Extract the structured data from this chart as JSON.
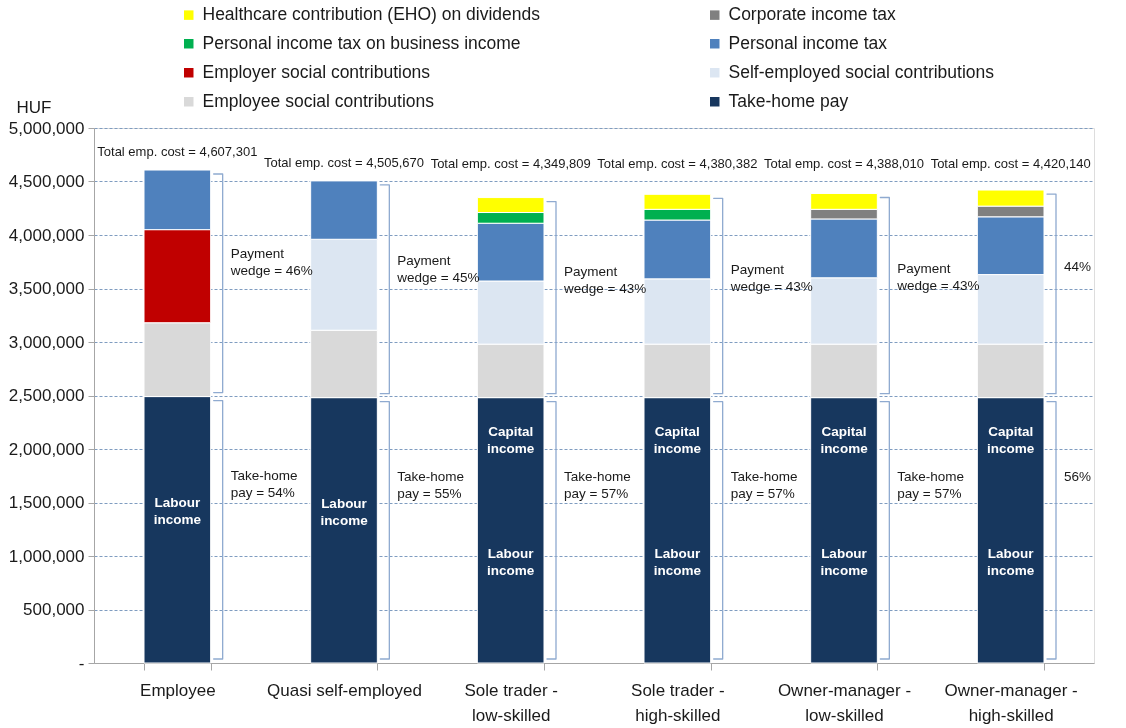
{
  "chart_data": {
    "type": "bar",
    "stacked": true,
    "ylabel": "HUF",
    "categories": [
      "Employee",
      "Quasi self-employed",
      "Sole trader -\nlow-skilled",
      "Sole trader -\nhigh-skilled",
      "Owner-manager -\nlow-skilled",
      "Owner-manager -\nhigh-skilled"
    ],
    "series": [
      {
        "name": "Take-home pay",
        "color": "#17375e",
        "values": [
          2490000,
          2480000,
          2480000,
          2480000,
          2480000,
          2480000
        ]
      },
      {
        "name": "Employee social contributions",
        "color": "#d9d9d9",
        "values": [
          690000,
          630000,
          500000,
          500000,
          500000,
          500000
        ]
      },
      {
        "name": "Self-employed social contributions",
        "color": "#dce6f2",
        "values": [
          null,
          850000,
          590000,
          610000,
          620000,
          650000
        ]
      },
      {
        "name": "Employer social contributions",
        "color": "#c00000",
        "values": [
          870000,
          null,
          null,
          null,
          null,
          null
        ]
      },
      {
        "name": "Personal income tax",
        "color": "#4f81bd",
        "values": [
          557301,
          545670,
          540000,
          550000,
          550000,
          540000
        ]
      },
      {
        "name": "Personal income tax on business income",
        "color": "#00b050",
        "values": [
          null,
          null,
          100000,
          100000,
          null,
          null
        ]
      },
      {
        "name": "Corporate income tax",
        "color": "#808080",
        "values": [
          null,
          null,
          null,
          null,
          90000,
          100000
        ]
      },
      {
        "name": "Healthcare contribution (EHO) on dividends",
        "color": "#ffff00",
        "values": [
          null,
          null,
          139809,
          140382,
          148010,
          150140
        ]
      }
    ],
    "totals": [
      "Total emp. cost = 4,607,301",
      "Total emp. cost = 4,505,670",
      "Total emp. cost = 4,349,809",
      "Total emp. cost = 4,380,382",
      "Total emp. cost = 4,388,010",
      "Total emp. cost = 4,420,140"
    ],
    "ylim": [
      0,
      5000000
    ],
    "yticks": [
      {
        "value": 0,
        "label": "-"
      },
      {
        "value": 500000,
        "label": "500,000"
      },
      {
        "value": 1000000,
        "label": "1,000,000"
      },
      {
        "value": 1500000,
        "label": "1,500,000"
      },
      {
        "value": 2000000,
        "label": "2,000,000"
      },
      {
        "value": 2500000,
        "label": "2,500,000"
      },
      {
        "value": 3000000,
        "label": "3,000,000"
      },
      {
        "value": 3500000,
        "label": "3,500,000"
      },
      {
        "value": 4000000,
        "label": "4,000,000"
      },
      {
        "value": 4500000,
        "label": "4,500,000"
      },
      {
        "value": 5000000,
        "label": "5,000,000"
      }
    ],
    "grid": "y",
    "legend": "top",
    "annotations": [
      "Labour\nincome",
      "Payment\nwedge = 46%",
      "Take-home\npay = 54%",
      "Labour\nincome",
      "Payment\nwedge = 45%",
      "Take-home\npay = 55%",
      "Capital\nincome",
      "Labour\nincome",
      "Payment\nwedge = 43%",
      "Take-home\npay = 57%",
      "Capital\nincome",
      "Labour\nincome",
      "Payment\nwedge = 43%",
      "Take-home\npay = 57%",
      "Capital\nincome",
      "Labour\nincome",
      "Payment\nwedge = 43%",
      "Take-home\npay = 57%",
      "Capital\nincome",
      "Labour\nincome",
      "44%",
      "56%"
    ]
  }
}
